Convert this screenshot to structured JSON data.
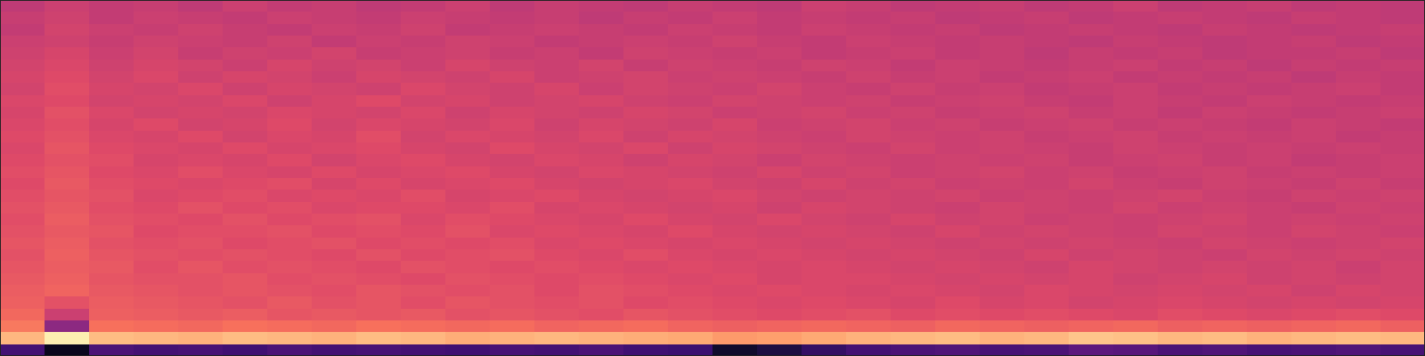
{
  "chart_data": {
    "type": "heatmap",
    "color": "magma",
    "zlim": [
      0,
      1
    ],
    "tick_labels": false,
    "cells": [
      [
        0.52,
        0.55,
        0.53,
        0.54,
        0.52,
        0.55,
        0.53,
        0.54,
        0.52,
        0.53,
        0.55,
        0.52,
        0.54,
        0.53,
        0.52,
        0.54,
        0.53,
        0.52,
        0.55,
        0.54,
        0.52,
        0.53,
        0.54,
        0.52,
        0.53,
        0.55,
        0.52,
        0.53,
        0.54,
        0.52,
        0.53,
        0.52
      ],
      [
        0.54,
        0.56,
        0.53,
        0.55,
        0.54,
        0.53,
        0.55,
        0.54,
        0.53,
        0.55,
        0.54,
        0.53,
        0.54,
        0.52,
        0.54,
        0.53,
        0.55,
        0.53,
        0.54,
        0.53,
        0.54,
        0.52,
        0.53,
        0.54,
        0.52,
        0.53,
        0.54,
        0.53,
        0.52,
        0.54,
        0.53,
        0.52
      ],
      [
        0.53,
        0.57,
        0.55,
        0.54,
        0.56,
        0.54,
        0.53,
        0.55,
        0.54,
        0.56,
        0.53,
        0.54,
        0.55,
        0.54,
        0.53,
        0.55,
        0.54,
        0.53,
        0.55,
        0.54,
        0.53,
        0.54,
        0.52,
        0.53,
        0.54,
        0.53,
        0.52,
        0.54,
        0.53,
        0.52,
        0.53,
        0.54
      ],
      [
        0.55,
        0.56,
        0.54,
        0.56,
        0.55,
        0.54,
        0.56,
        0.53,
        0.55,
        0.54,
        0.56,
        0.55,
        0.53,
        0.54,
        0.55,
        0.54,
        0.56,
        0.54,
        0.53,
        0.55,
        0.54,
        0.53,
        0.54,
        0.53,
        0.52,
        0.54,
        0.53,
        0.52,
        0.53,
        0.54,
        0.52,
        0.53
      ],
      [
        0.56,
        0.58,
        0.55,
        0.57,
        0.54,
        0.56,
        0.55,
        0.57,
        0.54,
        0.55,
        0.56,
        0.54,
        0.55,
        0.53,
        0.56,
        0.55,
        0.54,
        0.55,
        0.53,
        0.54,
        0.55,
        0.53,
        0.54,
        0.52,
        0.54,
        0.53,
        0.54,
        0.52,
        0.53,
        0.53,
        0.54,
        0.52
      ],
      [
        0.57,
        0.59,
        0.56,
        0.58,
        0.57,
        0.55,
        0.58,
        0.56,
        0.57,
        0.55,
        0.58,
        0.56,
        0.55,
        0.57,
        0.54,
        0.56,
        0.55,
        0.54,
        0.56,
        0.55,
        0.53,
        0.55,
        0.54,
        0.53,
        0.54,
        0.55,
        0.53,
        0.54,
        0.52,
        0.54,
        0.53,
        0.54
      ],
      [
        0.58,
        0.6,
        0.57,
        0.59,
        0.56,
        0.58,
        0.57,
        0.55,
        0.58,
        0.57,
        0.56,
        0.58,
        0.55,
        0.56,
        0.57,
        0.55,
        0.56,
        0.55,
        0.54,
        0.56,
        0.54,
        0.55,
        0.53,
        0.54,
        0.55,
        0.53,
        0.54,
        0.53,
        0.54,
        0.52,
        0.54,
        0.53
      ],
      [
        0.57,
        0.61,
        0.58,
        0.57,
        0.59,
        0.56,
        0.58,
        0.57,
        0.56,
        0.59,
        0.57,
        0.56,
        0.58,
        0.55,
        0.57,
        0.56,
        0.55,
        0.57,
        0.55,
        0.54,
        0.56,
        0.54,
        0.55,
        0.53,
        0.54,
        0.55,
        0.53,
        0.54,
        0.53,
        0.54,
        0.55,
        0.53
      ],
      [
        0.59,
        0.6,
        0.57,
        0.58,
        0.57,
        0.59,
        0.56,
        0.58,
        0.6,
        0.57,
        0.58,
        0.56,
        0.57,
        0.58,
        0.56,
        0.55,
        0.57,
        0.56,
        0.55,
        0.56,
        0.54,
        0.55,
        0.56,
        0.54,
        0.53,
        0.55,
        0.54,
        0.53,
        0.55,
        0.54,
        0.53,
        0.54
      ],
      [
        0.58,
        0.62,
        0.59,
        0.57,
        0.58,
        0.57,
        0.59,
        0.58,
        0.57,
        0.59,
        0.56,
        0.58,
        0.57,
        0.56,
        0.58,
        0.57,
        0.55,
        0.56,
        0.57,
        0.55,
        0.56,
        0.54,
        0.55,
        0.56,
        0.54,
        0.55,
        0.53,
        0.55,
        0.54,
        0.53,
        0.54,
        0.55
      ],
      [
        0.59,
        0.61,
        0.58,
        0.6,
        0.57,
        0.58,
        0.6,
        0.57,
        0.59,
        0.58,
        0.57,
        0.59,
        0.56,
        0.58,
        0.57,
        0.56,
        0.58,
        0.55,
        0.56,
        0.57,
        0.55,
        0.56,
        0.54,
        0.55,
        0.56,
        0.54,
        0.55,
        0.54,
        0.53,
        0.55,
        0.54,
        0.53
      ],
      [
        0.6,
        0.62,
        0.59,
        0.58,
        0.6,
        0.57,
        0.59,
        0.58,
        0.61,
        0.57,
        0.59,
        0.58,
        0.57,
        0.59,
        0.56,
        0.58,
        0.57,
        0.56,
        0.55,
        0.57,
        0.56,
        0.55,
        0.56,
        0.54,
        0.55,
        0.56,
        0.54,
        0.55,
        0.54,
        0.55,
        0.53,
        0.54
      ],
      [
        0.59,
        0.63,
        0.6,
        0.59,
        0.58,
        0.6,
        0.58,
        0.59,
        0.6,
        0.58,
        0.57,
        0.6,
        0.58,
        0.57,
        0.59,
        0.56,
        0.58,
        0.57,
        0.56,
        0.55,
        0.57,
        0.55,
        0.56,
        0.55,
        0.54,
        0.56,
        0.55,
        0.54,
        0.55,
        0.54,
        0.55,
        0.54
      ],
      [
        0.6,
        0.62,
        0.61,
        0.58,
        0.59,
        0.58,
        0.6,
        0.57,
        0.59,
        0.6,
        0.58,
        0.57,
        0.59,
        0.58,
        0.56,
        0.58,
        0.57,
        0.55,
        0.57,
        0.56,
        0.55,
        0.56,
        0.55,
        0.56,
        0.54,
        0.55,
        0.56,
        0.54,
        0.55,
        0.53,
        0.54,
        0.55
      ],
      [
        0.61,
        0.63,
        0.6,
        0.59,
        0.61,
        0.59,
        0.58,
        0.6,
        0.58,
        0.59,
        0.6,
        0.58,
        0.57,
        0.59,
        0.58,
        0.57,
        0.56,
        0.58,
        0.56,
        0.57,
        0.55,
        0.56,
        0.57,
        0.55,
        0.56,
        0.54,
        0.55,
        0.56,
        0.54,
        0.55,
        0.54,
        0.55
      ],
      [
        0.6,
        0.64,
        0.61,
        0.6,
        0.59,
        0.6,
        0.61,
        0.58,
        0.6,
        0.58,
        0.59,
        0.6,
        0.58,
        0.57,
        0.58,
        0.59,
        0.57,
        0.56,
        0.58,
        0.56,
        0.57,
        0.55,
        0.56,
        0.55,
        0.57,
        0.55,
        0.54,
        0.56,
        0.55,
        0.54,
        0.56,
        0.54
      ],
      [
        0.61,
        0.63,
        0.62,
        0.59,
        0.6,
        0.61,
        0.59,
        0.6,
        0.59,
        0.61,
        0.58,
        0.59,
        0.6,
        0.58,
        0.57,
        0.58,
        0.59,
        0.57,
        0.56,
        0.57,
        0.56,
        0.57,
        0.55,
        0.56,
        0.55,
        0.56,
        0.57,
        0.55,
        0.54,
        0.56,
        0.55,
        0.56
      ],
      [
        0.62,
        0.64,
        0.61,
        0.6,
        0.62,
        0.6,
        0.61,
        0.59,
        0.6,
        0.6,
        0.59,
        0.61,
        0.58,
        0.59,
        0.58,
        0.57,
        0.58,
        0.56,
        0.58,
        0.57,
        0.56,
        0.55,
        0.57,
        0.56,
        0.55,
        0.57,
        0.55,
        0.56,
        0.55,
        0.54,
        0.56,
        0.55
      ],
      [
        0.61,
        0.65,
        0.62,
        0.61,
        0.6,
        0.62,
        0.6,
        0.61,
        0.62,
        0.59,
        0.61,
        0.6,
        0.59,
        0.58,
        0.6,
        0.58,
        0.57,
        0.59,
        0.57,
        0.56,
        0.58,
        0.56,
        0.57,
        0.55,
        0.56,
        0.55,
        0.56,
        0.57,
        0.55,
        0.56,
        0.55,
        0.56
      ],
      [
        0.62,
        0.64,
        0.63,
        0.6,
        0.61,
        0.61,
        0.62,
        0.6,
        0.61,
        0.6,
        0.62,
        0.59,
        0.6,
        0.59,
        0.58,
        0.6,
        0.58,
        0.57,
        0.58,
        0.57,
        0.56,
        0.58,
        0.56,
        0.57,
        0.56,
        0.55,
        0.57,
        0.56,
        0.55,
        0.57,
        0.56,
        0.55
      ],
      [
        0.63,
        0.65,
        0.62,
        0.61,
        0.62,
        0.6,
        0.61,
        0.62,
        0.6,
        0.61,
        0.6,
        0.61,
        0.59,
        0.6,
        0.59,
        0.58,
        0.59,
        0.58,
        0.57,
        0.58,
        0.57,
        0.56,
        0.57,
        0.56,
        0.57,
        0.56,
        0.55,
        0.57,
        0.56,
        0.55,
        0.56,
        0.57
      ],
      [
        0.62,
        0.66,
        0.63,
        0.62,
        0.61,
        0.62,
        0.61,
        0.6,
        0.62,
        0.6,
        0.61,
        0.62,
        0.6,
        0.59,
        0.61,
        0.59,
        0.58,
        0.59,
        0.58,
        0.57,
        0.58,
        0.57,
        0.56,
        0.58,
        0.56,
        0.57,
        0.56,
        0.55,
        0.57,
        0.56,
        0.57,
        0.56
      ],
      [
        0.63,
        0.65,
        0.64,
        0.61,
        0.63,
        0.61,
        0.62,
        0.61,
        0.6,
        0.62,
        0.61,
        0.6,
        0.61,
        0.6,
        0.59,
        0.6,
        0.59,
        0.58,
        0.59,
        0.58,
        0.57,
        0.58,
        0.57,
        0.56,
        0.58,
        0.57,
        0.56,
        0.57,
        0.56,
        0.57,
        0.55,
        0.57
      ],
      [
        0.64,
        0.66,
        0.63,
        0.62,
        0.62,
        0.63,
        0.61,
        0.62,
        0.61,
        0.6,
        0.62,
        0.61,
        0.6,
        0.61,
        0.6,
        0.59,
        0.6,
        0.58,
        0.59,
        0.59,
        0.58,
        0.57,
        0.58,
        0.57,
        0.58,
        0.56,
        0.57,
        0.58,
        0.56,
        0.57,
        0.56,
        0.57
      ],
      [
        0.65,
        0.67,
        0.64,
        0.63,
        0.62,
        0.63,
        0.62,
        0.61,
        0.63,
        0.62,
        0.61,
        0.62,
        0.6,
        0.62,
        0.61,
        0.6,
        0.59,
        0.6,
        0.59,
        0.58,
        0.59,
        0.58,
        0.57,
        0.59,
        0.58,
        0.57,
        0.58,
        0.57,
        0.58,
        0.56,
        0.58,
        0.57
      ],
      [
        0.66,
        0.62,
        0.65,
        0.64,
        0.63,
        0.62,
        0.64,
        0.62,
        0.63,
        0.61,
        0.63,
        0.62,
        0.61,
        0.62,
        0.6,
        0.61,
        0.6,
        0.59,
        0.6,
        0.59,
        0.58,
        0.6,
        0.58,
        0.59,
        0.57,
        0.58,
        0.59,
        0.58,
        0.57,
        0.58,
        0.57,
        0.58
      ],
      [
        0.68,
        0.55,
        0.66,
        0.65,
        0.64,
        0.65,
        0.63,
        0.64,
        0.63,
        0.64,
        0.62,
        0.63,
        0.62,
        0.61,
        0.63,
        0.62,
        0.61,
        0.6,
        0.61,
        0.62,
        0.6,
        0.61,
        0.6,
        0.61,
        0.6,
        0.59,
        0.61,
        0.6,
        0.59,
        0.6,
        0.61,
        0.6
      ],
      [
        0.72,
        0.4,
        0.7,
        0.69,
        0.68,
        0.7,
        0.69,
        0.68,
        0.7,
        0.69,
        0.68,
        0.69,
        0.67,
        0.68,
        0.69,
        0.67,
        0.66,
        0.67,
        0.68,
        0.67,
        0.66,
        0.68,
        0.67,
        0.66,
        0.67,
        0.68,
        0.66,
        0.67,
        0.66,
        0.67,
        0.68,
        0.66
      ],
      [
        0.85,
        0.97,
        0.86,
        0.85,
        0.84,
        0.86,
        0.85,
        0.84,
        0.86,
        0.85,
        0.83,
        0.84,
        0.85,
        0.84,
        0.83,
        0.82,
        0.79,
        0.8,
        0.82,
        0.84,
        0.85,
        0.86,
        0.84,
        0.85,
        0.88,
        0.87,
        0.85,
        0.86,
        0.84,
        0.85,
        0.86,
        0.85
      ],
      [
        0.22,
        0.05,
        0.24,
        0.22,
        0.23,
        0.21,
        0.24,
        0.22,
        0.23,
        0.22,
        0.21,
        0.23,
        0.22,
        0.24,
        0.21,
        0.2,
        0.08,
        0.12,
        0.18,
        0.22,
        0.24,
        0.25,
        0.23,
        0.24,
        0.28,
        0.27,
        0.24,
        0.25,
        0.23,
        0.24,
        0.25,
        0.23
      ]
    ]
  }
}
